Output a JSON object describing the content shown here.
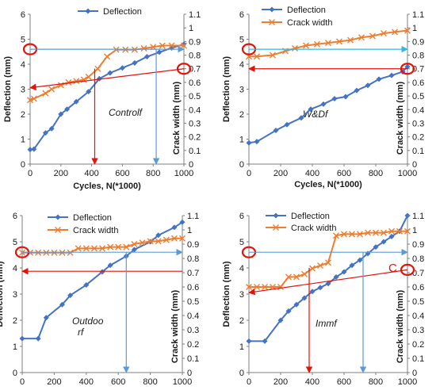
{
  "colors": {
    "deflection": "#4472C4",
    "crack": "#ED7D31",
    "red_marker": "#E3120B",
    "light_blue_arrow": "#5B9BD5",
    "cyan_arrow": "#33B5E5"
  },
  "chart_data": [
    {
      "id": "controlf",
      "type": "line",
      "title": "",
      "annotation": "Controlf",
      "xlabel": "Cycles, N(*1000)",
      "ylabel": "Deflection (mm)",
      "y2label": "Crack width (mm)",
      "xlim": [
        0,
        1000
      ],
      "ylim": [
        0,
        6
      ],
      "y2lim": [
        0,
        1.1
      ],
      "xticks": [
        "0",
        "200",
        "400",
        "600",
        "800",
        "1000"
      ],
      "yticks": [
        "0",
        "1",
        "2",
        "3",
        "4",
        "5",
        "6"
      ],
      "y2ticks": [
        "0",
        "0.1",
        "0.2",
        "0.3",
        "0.4",
        "0.5",
        "0.6",
        "0.7",
        "0.8",
        "0.9",
        "1",
        "1.1"
      ],
      "legend": {
        "placement": "top-center",
        "entries": [
          "Deflection"
        ]
      },
      "series": [
        {
          "name": "Deflection",
          "axis": "left",
          "marker": "diamond",
          "x": [
            0,
            25,
            100,
            140,
            200,
            240,
            300,
            380,
            450,
            520,
            600,
            680,
            760,
            840,
            920,
            1000
          ],
          "y": [
            0.58,
            0.6,
            1.25,
            1.42,
            2.0,
            2.2,
            2.5,
            2.9,
            3.42,
            3.65,
            3.85,
            4.05,
            4.3,
            4.48,
            4.65,
            4.8
          ]
        },
        {
          "name": "Crack width",
          "axis": "right",
          "marker": "x",
          "x": [
            0,
            25,
            100,
            140,
            200,
            250,
            300,
            350,
            380,
            440,
            500,
            560,
            620,
            680,
            740,
            800,
            860,
            920,
            1000
          ],
          "y": [
            0.47,
            0.48,
            0.52,
            0.55,
            0.58,
            0.6,
            0.61,
            0.62,
            0.64,
            0.7,
            0.79,
            0.84,
            0.84,
            0.84,
            0.85,
            0.86,
            0.87,
            0.87,
            0.87
          ]
        }
      ],
      "annotations": [
        {
          "kind": "circle",
          "axis": "left",
          "x": 0,
          "y": 4.6
        },
        {
          "kind": "circle",
          "axis": "right",
          "x": 1000,
          "y": 0.7
        },
        {
          "kind": "arrow",
          "color": "light_blue_arrow",
          "axis": "left",
          "from": [
            0,
            4.6
          ],
          "to": [
            1000,
            4.6
          ]
        },
        {
          "kind": "arrow",
          "color": "red_marker",
          "axis": "right",
          "from": [
            1000,
            0.7
          ],
          "to": [
            0,
            0.56
          ]
        },
        {
          "kind": "arrow",
          "color": "light_blue_arrow",
          "axis": "left",
          "from": [
            820,
            4.6
          ],
          "to": [
            820,
            0
          ]
        },
        {
          "kind": "arrow",
          "color": "red_marker",
          "axis": "left",
          "from": [
            420,
            3.82
          ],
          "to": [
            420,
            0
          ]
        }
      ]
    },
    {
      "id": "wdf",
      "type": "line",
      "title": "",
      "annotation": "W&Df",
      "xlabel": "Cycles, N(*1000)",
      "ylabel": "Deflection (mm)",
      "y2label": "Crack width (mm)",
      "xlim": [
        0,
        1000
      ],
      "ylim": [
        0,
        6
      ],
      "y2lim": [
        0,
        1.1
      ],
      "xticks": [
        "0",
        "200",
        "400",
        "600",
        "800",
        "1000"
      ],
      "yticks": [
        "0",
        "1",
        "2",
        "3",
        "4",
        "5",
        "6"
      ],
      "y2ticks": [
        "0",
        "0.1",
        "0.2",
        "0.3",
        "0.4",
        "0.5",
        "0.6",
        "0.7",
        "0.8",
        "0.9",
        "1",
        "1.1"
      ],
      "legend": {
        "placement": "top-center",
        "entries": [
          "Deflection",
          "Crack width"
        ]
      },
      "series": [
        {
          "name": "Deflection",
          "axis": "left",
          "marker": "diamond",
          "x": [
            0,
            50,
            170,
            240,
            330,
            390,
            470,
            540,
            610,
            680,
            750,
            820,
            900,
            970,
            1000
          ],
          "y": [
            0.85,
            0.9,
            1.35,
            1.58,
            1.85,
            2.2,
            2.4,
            2.62,
            2.7,
            2.95,
            3.15,
            3.4,
            3.55,
            3.7,
            3.9
          ]
        },
        {
          "name": "Crack width",
          "axis": "right",
          "marker": "x",
          "x": [
            0,
            50,
            150,
            230,
            290,
            360,
            430,
            500,
            570,
            640,
            710,
            780,
            850,
            920,
            1000
          ],
          "y": [
            0.79,
            0.79,
            0.8,
            0.83,
            0.85,
            0.87,
            0.88,
            0.89,
            0.9,
            0.91,
            0.93,
            0.94,
            0.96,
            0.97,
            0.98
          ]
        }
      ],
      "annotations": [
        {
          "kind": "circle",
          "axis": "left",
          "x": 0,
          "y": 4.6
        },
        {
          "kind": "circle",
          "axis": "right",
          "x": 1000,
          "y": 0.7
        },
        {
          "kind": "arrow",
          "color": "cyan_arrow",
          "axis": "left",
          "from": [
            0,
            4.6
          ],
          "to": [
            1000,
            4.6
          ]
        },
        {
          "kind": "arrow",
          "color": "red_marker",
          "axis": "right",
          "from": [
            1000,
            0.7
          ],
          "to": [
            0,
            0.7
          ]
        }
      ]
    },
    {
      "id": "outdoorf",
      "type": "line",
      "title": "",
      "annotation": "Outdoo rf",
      "annotation_lines": [
        "Outdoo",
        "rf"
      ],
      "xlabel": "",
      "ylabel": "Deflection (mm)",
      "y2label": "Crack width (mm)",
      "xlim": [
        0,
        1000
      ],
      "ylim": [
        0,
        6
      ],
      "y2lim": [
        0,
        1.1
      ],
      "xticks": [
        "0",
        "200",
        "400",
        "600",
        "800",
        "1000"
      ],
      "yticks": [
        "0",
        "1",
        "2",
        "3",
        "4",
        "5",
        "6"
      ],
      "y2ticks": [
        "0",
        "0.1",
        "0.2",
        "0.3",
        "0.4",
        "0.5",
        "0.6",
        "0.7",
        "0.8",
        "0.9",
        "1",
        "1.1"
      ],
      "legend": {
        "placement": "top-center",
        "entries": [
          "Deflection",
          "Crack width"
        ]
      },
      "series": [
        {
          "name": "Deflection",
          "axis": "left",
          "marker": "diamond",
          "x": [
            0,
            100,
            150,
            250,
            300,
            400,
            500,
            550,
            650,
            700,
            800,
            850,
            950,
            1000
          ],
          "y": [
            1.3,
            1.3,
            2.1,
            2.6,
            2.95,
            3.35,
            3.85,
            4.1,
            4.45,
            4.7,
            5.0,
            5.25,
            5.55,
            5.75
          ]
        },
        {
          "name": "Crack width",
          "axis": "right",
          "marker": "x",
          "x": [
            0,
            50,
            100,
            150,
            200,
            250,
            300,
            350,
            400,
            450,
            500,
            550,
            600,
            650,
            700,
            750,
            800,
            850,
            900,
            950,
            1000
          ],
          "y": [
            0.84,
            0.84,
            0.84,
            0.84,
            0.84,
            0.84,
            0.84,
            0.87,
            0.87,
            0.87,
            0.87,
            0.88,
            0.88,
            0.88,
            0.9,
            0.91,
            0.92,
            0.92,
            0.93,
            0.94,
            0.94
          ]
        }
      ],
      "annotations": [
        {
          "kind": "circle",
          "axis": "left",
          "x": 0,
          "y": 4.6
        },
        {
          "kind": "arrow",
          "color": "light_blue_arrow",
          "axis": "left",
          "from": [
            0,
            4.6
          ],
          "to": [
            1000,
            4.6
          ]
        },
        {
          "kind": "arrow",
          "color": "red_marker",
          "axis": "right",
          "from": [
            1000,
            0.71
          ],
          "to": [
            0,
            0.71
          ]
        },
        {
          "kind": "arrow",
          "color": "light_blue_arrow",
          "axis": "left",
          "from": [
            650,
            4.6
          ],
          "to": [
            650,
            0
          ]
        }
      ]
    },
    {
      "id": "immf",
      "type": "line",
      "title": "",
      "annotation": "Immf",
      "xlabel": "",
      "ylabel": "Deflection (mm)",
      "y2label": "Crack width (mm)",
      "xlim": [
        0,
        1000
      ],
      "ylim": [
        0,
        6
      ],
      "y2lim": [
        0,
        1.1
      ],
      "xticks": [
        "0",
        "200",
        "400",
        "600",
        "800",
        "1000"
      ],
      "yticks": [
        "0",
        "1",
        "2",
        "3",
        "4",
        "5",
        "6"
      ],
      "y2ticks": [
        "0",
        "0.1",
        "0.2",
        "0.3",
        "0.4",
        "0.5",
        "0.6",
        "0.7",
        "0.8",
        "0.9",
        "1",
        "1.1"
      ],
      "legend": {
        "placement": "top-center",
        "entries": [
          "Deflection",
          "Crack width"
        ]
      },
      "series": [
        {
          "name": "Deflection",
          "axis": "left",
          "marker": "diamond",
          "x": [
            0,
            100,
            200,
            250,
            300,
            350,
            400,
            450,
            500,
            550,
            600,
            650,
            700,
            750,
            800,
            850,
            900,
            950,
            1000
          ],
          "y": [
            1.2,
            1.2,
            2.0,
            2.35,
            2.6,
            2.85,
            3.1,
            3.25,
            3.4,
            3.65,
            3.85,
            4.1,
            4.3,
            4.55,
            4.8,
            5.0,
            5.2,
            5.4,
            6.0
          ]
        },
        {
          "name": "Crack width",
          "axis": "right",
          "marker": "x",
          "x": [
            0,
            50,
            100,
            150,
            200,
            250,
            300,
            350,
            400,
            450,
            500,
            550,
            600,
            650,
            700,
            750,
            800,
            850,
            900,
            950,
            1000
          ],
          "y": [
            0.6,
            0.6,
            0.6,
            0.6,
            0.6,
            0.67,
            0.67,
            0.69,
            0.73,
            0.75,
            0.77,
            0.96,
            0.97,
            0.97,
            0.97,
            0.98,
            0.98,
            0.98,
            0.99,
            0.99,
            0.99
          ]
        }
      ],
      "annotations": [
        {
          "kind": "circle",
          "axis": "left",
          "x": 0,
          "y": 4.6
        },
        {
          "kind": "circle",
          "axis": "right",
          "x": 1000,
          "y": 0.72
        },
        {
          "kind": "arrow",
          "color": "light_blue_arrow",
          "axis": "left",
          "from": [
            0,
            4.6
          ],
          "to": [
            1000,
            4.6
          ]
        },
        {
          "kind": "arrow",
          "color": "red_marker",
          "axis": "right",
          "from": [
            1000,
            0.72
          ],
          "to": [
            0,
            0.56
          ]
        },
        {
          "kind": "arrow",
          "color": "red_marker",
          "axis": "left",
          "from": [
            380,
            4.0
          ],
          "to": [
            380,
            0
          ]
        },
        {
          "kind": "arrow",
          "color": "light_blue_arrow",
          "axis": "left",
          "from": [
            720,
            4.6
          ],
          "to": [
            720,
            0
          ]
        },
        {
          "kind": "text",
          "axis": "left",
          "x": 880,
          "y": 3.85,
          "text": "C"
        }
      ]
    }
  ]
}
